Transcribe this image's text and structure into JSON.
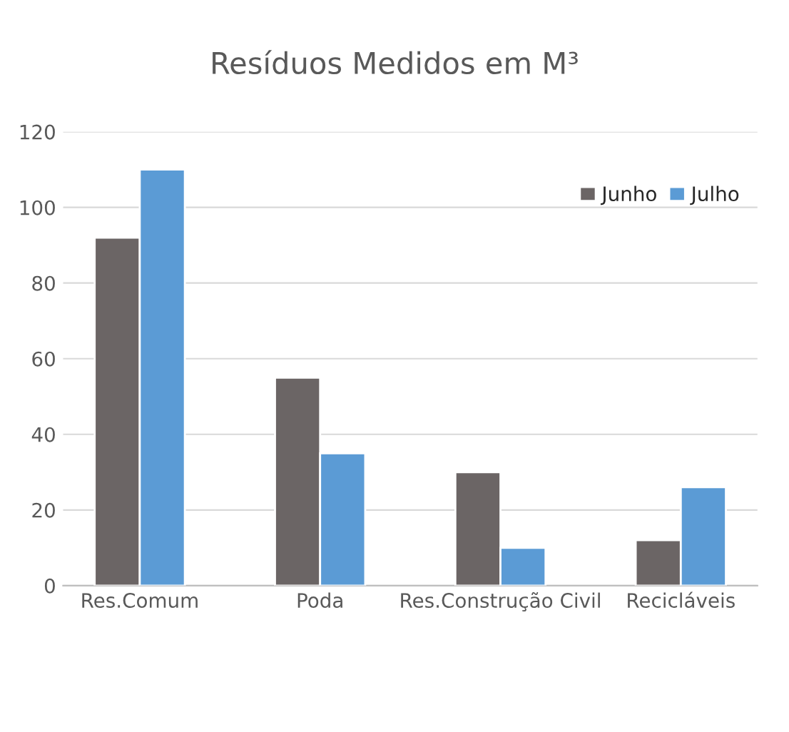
{
  "chart_data": {
    "type": "bar",
    "title": "Resíduos Medidos em M³",
    "categories": [
      "Res.Comum",
      "Poda",
      "Res.Construção Civil",
      "Recicláveis"
    ],
    "series": [
      {
        "name": "Junho",
        "color": "#6b6565",
        "values": [
          92,
          55,
          30,
          12
        ]
      },
      {
        "name": "Julho",
        "color": "#5b9bd5",
        "values": [
          110,
          35,
          10,
          26
        ]
      }
    ],
    "ylim": [
      0,
      120
    ],
    "yticks": [
      0,
      20,
      40,
      60,
      80,
      100,
      120
    ],
    "grid": "y",
    "legend": "top right"
  }
}
